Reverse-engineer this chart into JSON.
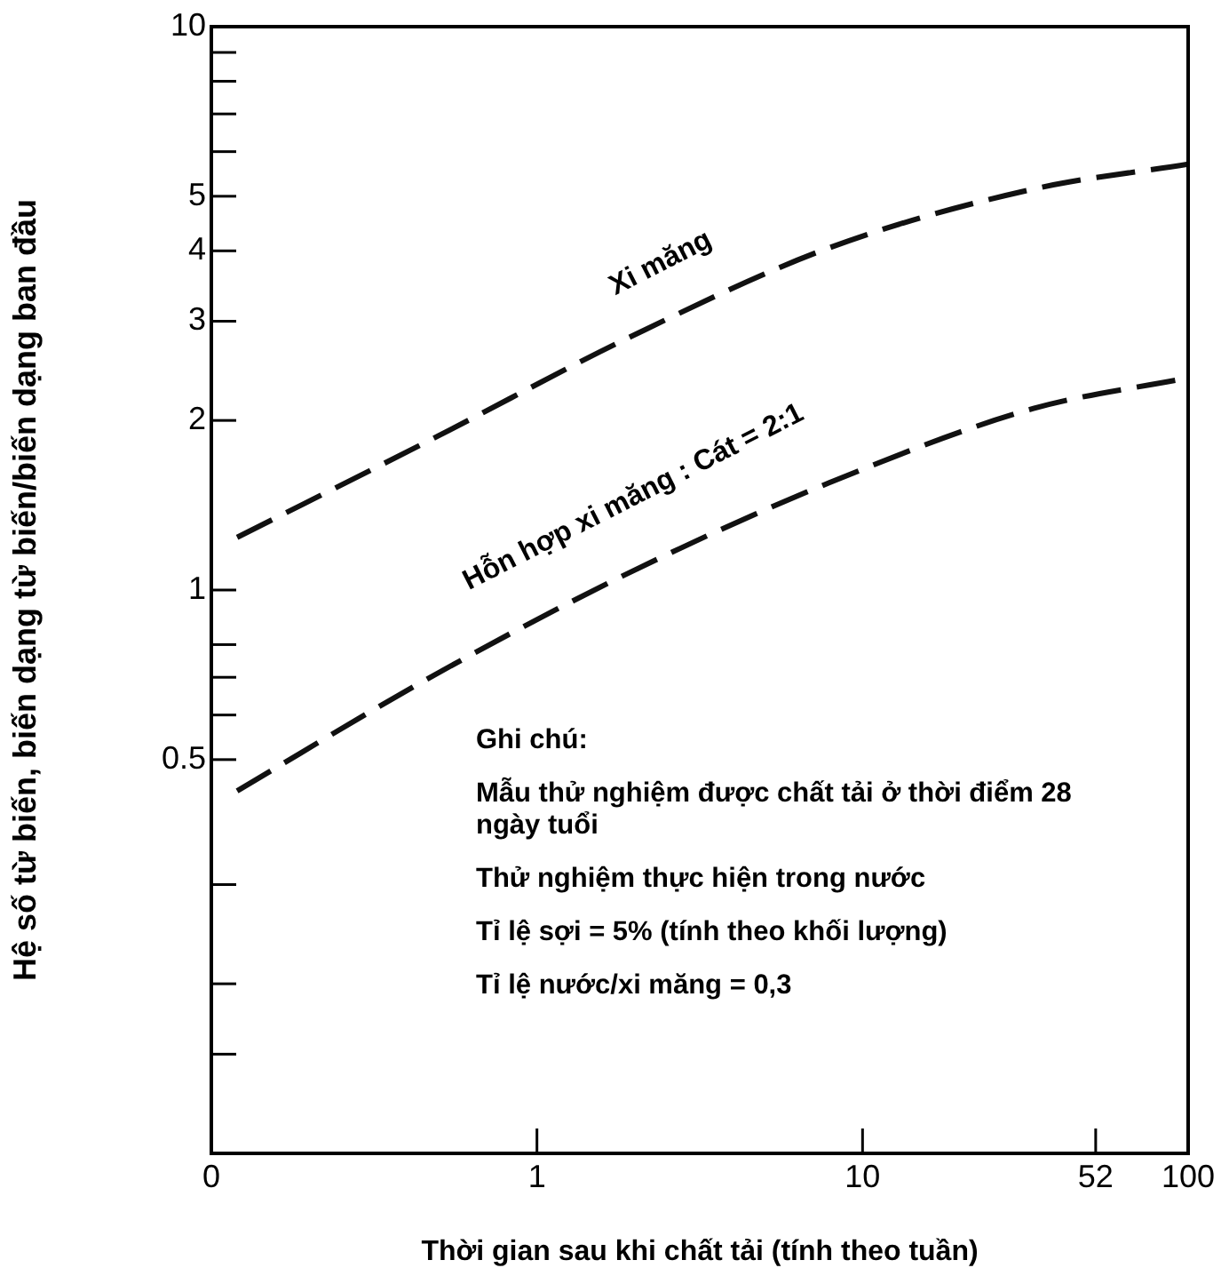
{
  "chart_data": {
    "type": "line",
    "xlabel": "Thời gian sau khi chất tải (tính theo tuần)",
    "ylabel": "Hệ số từ biến, biến dạng từ biến/biến dạng ban đầu",
    "log": "xy",
    "grid": false,
    "legend": false,
    "marker": "none",
    "line_style": "dashed",
    "xlim": [
      0.1,
      100
    ],
    "xticks": [
      {
        "value": 0.1,
        "label": "0"
      },
      1,
      10,
      52,
      100
    ],
    "ylim": [
      0.1,
      10
    ],
    "yticks": [
      {
        "value": 0.15,
        "label": null
      },
      {
        "value": 0.2,
        "label": null
      },
      {
        "value": 0.3,
        "label": null
      },
      0.5,
      {
        "value": 0.6,
        "label": null
      },
      {
        "value": 0.7,
        "label": null
      },
      {
        "value": 0.8,
        "label": null
      },
      1,
      2,
      3,
      4,
      5,
      {
        "value": 6,
        "label": null
      },
      {
        "value": 7,
        "label": null
      },
      {
        "value": 8,
        "label": null
      },
      {
        "value": 9,
        "label": null
      },
      10
    ],
    "series": [
      {
        "name": "Xi măng",
        "color": "#111111",
        "x": [
          0.12,
          0.5,
          1.9,
          7.9,
          33.5,
          100
        ],
        "values": [
          1.24,
          1.88,
          2.8,
          4.05,
          5.15,
          5.7
        ]
      },
      {
        "name": "Hỗn hợp xi măng : Cát = 2:1",
        "color": "#111111",
        "x": [
          0.12,
          0.45,
          1.9,
          7.9,
          33.5,
          100
        ],
        "values": [
          0.44,
          0.69,
          1.07,
          1.55,
          2.1,
          2.38
        ]
      }
    ],
    "annotations": [
      "Ghi chú:",
      "Mẫu thử nghiệm được chất tải ở thời điểm 28 ngày tuổi",
      "Thử nghiệm thực hiện trong nước",
      "Tỉ lệ sợi = 5% (tính theo khối lượng)",
      "Tỉ lệ nước/xi măng = 0,3"
    ]
  }
}
